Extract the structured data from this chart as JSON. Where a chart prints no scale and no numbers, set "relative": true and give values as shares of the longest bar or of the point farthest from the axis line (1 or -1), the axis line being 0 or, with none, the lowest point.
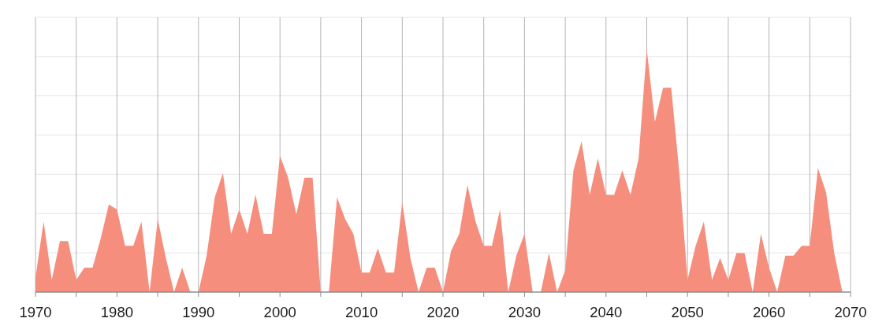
{
  "chart_data": {
    "type": "area",
    "relative": true,
    "color": "#f68e7e",
    "grid": true,
    "xlim": [
      1970,
      2070
    ],
    "xticks": [
      1970,
      {
        "value": 1975,
        "label": null
      },
      1980,
      {
        "value": 1985,
        "label": null
      },
      1990,
      {
        "value": 1995,
        "label": null
      },
      2000,
      {
        "value": 2005,
        "label": null
      },
      2010,
      {
        "value": 2015,
        "label": null
      },
      2020,
      {
        "value": 2025,
        "label": null
      },
      2030,
      {
        "value": 2035,
        "label": null
      },
      2040,
      {
        "value": 2045,
        "label": null
      },
      2050,
      {
        "value": 2055,
        "label": null
      },
      2060,
      {
        "value": 2065,
        "label": null
      },
      2070
    ],
    "x": [
      1970,
      1971,
      1972,
      1973,
      1974,
      1975,
      1976,
      1977,
      1978,
      1979,
      1980,
      1981,
      1982,
      1983,
      1984,
      1985,
      1986,
      1987,
      1988,
      1989,
      1990,
      1991,
      1992,
      1993,
      1994,
      1995,
      1996,
      1997,
      1998,
      1999,
      2000,
      2001,
      2002,
      2003,
      2004,
      2005,
      2006,
      2007,
      2008,
      2009,
      2010,
      2011,
      2012,
      2013,
      2014,
      2015,
      2016,
      2017,
      2018,
      2019,
      2020,
      2021,
      2022,
      2023,
      2024,
      2025,
      2026,
      2027,
      2028,
      2029,
      2030,
      2031,
      2032,
      2033,
      2034,
      2035,
      2036,
      2037,
      2038,
      2039,
      2040,
      2041,
      2042,
      2043,
      2044,
      2045,
      2046,
      2047,
      2048,
      2049,
      2050,
      2051,
      2052,
      2053,
      2054,
      2055,
      2056,
      2057,
      2058,
      2059,
      2060,
      2061,
      2062,
      2063,
      2064,
      2065,
      2066,
      2067,
      2068,
      2069
    ],
    "values": [
      0.06,
      0.29,
      0.05,
      0.21,
      0.21,
      0.05,
      0.1,
      0.1,
      0.22,
      0.36,
      0.34,
      0.19,
      0.19,
      0.29,
      0,
      0.3,
      0.14,
      0,
      0.1,
      0,
      0,
      0.15,
      0.39,
      0.49,
      0.24,
      0.34,
      0.24,
      0.4,
      0.24,
      0.24,
      0.56,
      0.47,
      0.32,
      0.47,
      0.47,
      0,
      0,
      0.39,
      0.3,
      0.24,
      0.08,
      0.08,
      0.18,
      0.08,
      0.08,
      0.37,
      0.14,
      0,
      0.1,
      0.1,
      0,
      0.17,
      0.24,
      0.44,
      0.29,
      0.19,
      0.19,
      0.34,
      0,
      0.15,
      0.24,
      0,
      0,
      0.16,
      0,
      0.09,
      0.5,
      0.62,
      0.4,
      0.55,
      0.4,
      0.4,
      0.5,
      0.4,
      0.55,
      1,
      0.7,
      0.84,
      0.84,
      0.49,
      0.05,
      0.19,
      0.29,
      0.05,
      0.14,
      0.05,
      0.16,
      0.16,
      0,
      0.24,
      0.1,
      0,
      0.15,
      0.15,
      0.19,
      0.19,
      0.51,
      0.41,
      0.16,
      0
    ]
  }
}
